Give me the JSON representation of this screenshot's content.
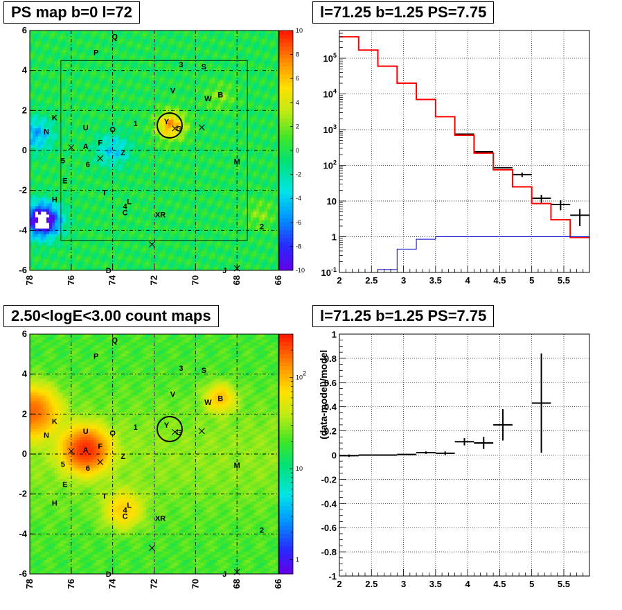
{
  "panels": {
    "ps_map": {
      "title": "PS map b=0 l=72"
    },
    "spectrum": {
      "title": "l=71.25 b=1.25 PS=7.75"
    },
    "count_map": {
      "title": "2.50<logE<3.00 count maps"
    },
    "residual": {
      "title": "l=71.25 b=1.25 PS=7.75"
    }
  },
  "colors": {
    "data": "#000000",
    "model": "#ff0000",
    "background_model": "#0000cc"
  },
  "chart_data": [
    {
      "id": "ps_map",
      "type": "heatmap",
      "title": "PS map b=0 l=72",
      "xlim": [
        78,
        66
      ],
      "ylim": [
        -6,
        6
      ],
      "x_ticks": [
        "78",
        "76",
        "74",
        "72",
        "70",
        "68",
        "66"
      ],
      "y_ticks": [
        "6",
        "4",
        "2",
        "0",
        "-2",
        "-4",
        "-6"
      ],
      "colorbar": {
        "range": [
          -10,
          10
        ],
        "ticks": [
          "10",
          "8",
          "6",
          "4",
          "2",
          "0",
          "-2",
          "-4",
          "-6",
          "-8",
          "-10"
        ]
      },
      "features": [
        {
          "l": 71.2,
          "b": 1.25,
          "value": 7,
          "sigma": 0.5
        },
        {
          "l": 77.4,
          "b": -3.5,
          "value": -12,
          "sigma": 0.6
        },
        {
          "l": 77.7,
          "b": 0.8,
          "value": -5,
          "sigma": 0.6
        },
        {
          "l": 74.0,
          "b": 0.0,
          "value": -4,
          "sigma": 0.6
        },
        {
          "l": 68.8,
          "b": 2.7,
          "value": 2,
          "sigma": 0.5
        },
        {
          "l": 66.9,
          "b": -3.2,
          "value": 2,
          "sigma": 0.5
        }
      ],
      "sources": [
        {
          "label": "Q",
          "l": 73.9,
          "b": 5.7
        },
        {
          "label": "P",
          "l": 74.8,
          "b": 4.9
        },
        {
          "label": "3",
          "l": 70.7,
          "b": 4.3
        },
        {
          "label": "S",
          "l": 69.6,
          "b": 4.2
        },
        {
          "label": "V",
          "l": 71.1,
          "b": 3.0
        },
        {
          "label": "W",
          "l": 69.4,
          "b": 2.6
        },
        {
          "label": "B",
          "l": 68.8,
          "b": 2.8
        },
        {
          "label": "Y",
          "l": 71.4,
          "b": 1.45
        },
        {
          "label": "G",
          "l": 70.8,
          "b": 1.1
        },
        {
          "label": "K",
          "l": 76.8,
          "b": 1.65
        },
        {
          "label": "N",
          "l": 77.2,
          "b": 0.95
        },
        {
          "label": "U",
          "l": 75.3,
          "b": 1.15
        },
        {
          "label": "O",
          "l": 74.0,
          "b": 1.05
        },
        {
          "label": "1",
          "l": 72.9,
          "b": 1.35
        },
        {
          "label": "F",
          "l": 74.6,
          "b": 0.4
        },
        {
          "label": "A",
          "l": 75.3,
          "b": 0.2
        },
        {
          "label": "Z",
          "l": 73.5,
          "b": -0.1
        },
        {
          "label": "5",
          "l": 76.4,
          "b": -0.5
        },
        {
          "label": "6",
          "l": 75.2,
          "b": -0.7
        },
        {
          "label": "M",
          "l": 68.0,
          "b": -0.55
        },
        {
          "label": "E",
          "l": 76.3,
          "b": -1.5
        },
        {
          "label": "T",
          "l": 74.4,
          "b": -2.1
        },
        {
          "label": "H",
          "l": 76.8,
          "b": -2.45
        },
        {
          "label": "4",
          "l": 73.4,
          "b": -2.8
        },
        {
          "label": "L",
          "l": 73.2,
          "b": -2.55
        },
        {
          "label": "C",
          "l": 73.4,
          "b": -3.1
        },
        {
          "label": "XR",
          "l": 71.7,
          "b": -3.2
        },
        {
          "label": "2",
          "l": 66.8,
          "b": -3.8
        },
        {
          "label": "D",
          "l": 74.2,
          "b": -6.0
        },
        {
          "label": "J",
          "l": 68.6,
          "b": -6.0
        }
      ],
      "crosses": [
        {
          "l": 76.0,
          "b": 0.15
        },
        {
          "l": 74.6,
          "b": -0.4
        },
        {
          "l": 71.0,
          "b": 1.1
        },
        {
          "l": 69.7,
          "b": 1.15
        },
        {
          "l": 72.1,
          "b": -4.7
        },
        {
          "l": 68.0,
          "b": -5.9
        }
      ],
      "circle": {
        "l": 71.25,
        "b": 1.25,
        "r": 0.6
      },
      "roi": {
        "l_min": 67.5,
        "l_max": 76.5,
        "b_min": -4.5,
        "b_max": 4.5
      }
    },
    {
      "id": "spectrum",
      "type": "line",
      "title": "l=71.25 b=1.25 PS=7.75",
      "xlabel": "",
      "ylabel": "",
      "xlim": [
        2,
        5.9
      ],
      "ylim": [
        0.1,
        600000
      ],
      "y_log": true,
      "x_ticks": [
        "2",
        "2.5",
        "3",
        "3.5",
        "4",
        "4.5",
        "5",
        "5.5"
      ],
      "y_ticks": [
        "10^5",
        "10^4",
        "10^3",
        "10^2",
        "10",
        "1",
        "10^-1"
      ],
      "bin_edges": [
        2.0,
        2.3,
        2.6,
        2.9,
        3.2,
        3.5,
        3.8,
        4.1,
        4.4,
        4.7,
        5.0,
        5.3,
        5.6,
        5.9
      ],
      "series": [
        {
          "style": "data",
          "values": [
            null,
            null,
            null,
            null,
            null,
            null,
            750,
            240,
            85,
            55,
            12,
            8,
            4
          ],
          "errors": [
            0,
            0,
            0,
            0,
            0,
            0,
            0,
            0,
            0,
            8,
            3,
            2.5,
            2
          ]
        },
        {
          "style": "model",
          "values": [
            400000,
            170000,
            60000,
            20000,
            7000,
            2300,
            700,
            220,
            75,
            25,
            8.5,
            3,
            0.95
          ]
        },
        {
          "style": "background_model",
          "values": [
            0.1,
            0.1,
            0.12,
            0.45,
            0.85,
            1.0,
            1.0,
            1.0,
            1.0,
            1.0,
            1.0,
            1.0,
            1.0
          ]
        }
      ],
      "grid": true
    },
    {
      "id": "count_map",
      "type": "heatmap",
      "title": "2.50<logE<3.00 count maps",
      "xlim": [
        78,
        66
      ],
      "ylim": [
        -6,
        6
      ],
      "x_ticks": [
        "78",
        "76",
        "74",
        "72",
        "70",
        "68",
        "66"
      ],
      "y_ticks": [
        "6",
        "4",
        "2",
        "0",
        "-2",
        "-4",
        "-6"
      ],
      "colorbar": {
        "log": true,
        "range": [
          0.7,
          300
        ],
        "ticks": [
          "10^2",
          "10",
          "1"
        ]
      },
      "features": [
        {
          "l": 75.3,
          "b": 0.2,
          "value": 230,
          "sigma": 0.65
        },
        {
          "l": 77.9,
          "b": 2.1,
          "value": 150,
          "sigma": 0.75
        },
        {
          "l": 68.8,
          "b": 2.8,
          "value": 70,
          "sigma": 0.45
        },
        {
          "l": 73.5,
          "b": -2.8,
          "value": 60,
          "sigma": 0.6
        }
      ],
      "sources": [
        {
          "label": "Q",
          "l": 73.9,
          "b": 5.7
        },
        {
          "label": "P",
          "l": 74.8,
          "b": 4.9
        },
        {
          "label": "3",
          "l": 70.7,
          "b": 4.3
        },
        {
          "label": "S",
          "l": 69.6,
          "b": 4.2
        },
        {
          "label": "V",
          "l": 71.1,
          "b": 3.0
        },
        {
          "label": "W",
          "l": 69.4,
          "b": 2.6
        },
        {
          "label": "B",
          "l": 68.8,
          "b": 2.8
        },
        {
          "label": "Y",
          "l": 71.4,
          "b": 1.45
        },
        {
          "label": "G",
          "l": 70.8,
          "b": 1.1
        },
        {
          "label": "K",
          "l": 76.8,
          "b": 1.65
        },
        {
          "label": "N",
          "l": 77.2,
          "b": 0.95
        },
        {
          "label": "U",
          "l": 75.3,
          "b": 1.15
        },
        {
          "label": "O",
          "l": 74.0,
          "b": 1.05
        },
        {
          "label": "1",
          "l": 72.9,
          "b": 1.35
        },
        {
          "label": "F",
          "l": 74.6,
          "b": 0.4
        },
        {
          "label": "A",
          "l": 75.3,
          "b": 0.2
        },
        {
          "label": "Z",
          "l": 73.5,
          "b": -0.1
        },
        {
          "label": "5",
          "l": 76.4,
          "b": -0.5
        },
        {
          "label": "6",
          "l": 75.2,
          "b": -0.7
        },
        {
          "label": "M",
          "l": 68.0,
          "b": -0.55
        },
        {
          "label": "E",
          "l": 76.3,
          "b": -1.5
        },
        {
          "label": "T",
          "l": 74.4,
          "b": -2.1
        },
        {
          "label": "H",
          "l": 76.8,
          "b": -2.45
        },
        {
          "label": "4",
          "l": 73.4,
          "b": -2.8
        },
        {
          "label": "L",
          "l": 73.2,
          "b": -2.55
        },
        {
          "label": "C",
          "l": 73.4,
          "b": -3.1
        },
        {
          "label": "XR",
          "l": 71.7,
          "b": -3.2
        },
        {
          "label": "2",
          "l": 66.8,
          "b": -3.8
        },
        {
          "label": "D",
          "l": 74.2,
          "b": -6.0
        },
        {
          "label": "J",
          "l": 68.6,
          "b": -6.0
        }
      ],
      "crosses": [
        {
          "l": 76.0,
          "b": 0.15
        },
        {
          "l": 74.6,
          "b": -0.4
        },
        {
          "l": 71.0,
          "b": 1.1
        },
        {
          "l": 69.7,
          "b": 1.15
        },
        {
          "l": 72.1,
          "b": -4.7
        },
        {
          "l": 68.0,
          "b": -5.9
        }
      ],
      "circle": {
        "l": 71.25,
        "b": 1.25,
        "r": 0.6
      }
    },
    {
      "id": "residual",
      "type": "scatter",
      "title": "l=71.25 b=1.25 PS=7.75",
      "xlabel": "",
      "ylabel": "(data-model)/model",
      "xlim": [
        2,
        5.9
      ],
      "ylim": [
        -1,
        1
      ],
      "x_ticks": [
        "2",
        "2.5",
        "3",
        "3.5",
        "4",
        "4.5",
        "5",
        "5.5"
      ],
      "y_ticks": [
        "1",
        "0.8",
        "0.6",
        "0.4",
        "0.2",
        "0",
        "-0.2",
        "-0.4",
        "-0.6",
        "-0.8",
        "-1"
      ],
      "points": [
        {
          "x": 2.15,
          "y": -0.005,
          "xerr": 0.15,
          "yerr": 0.01
        },
        {
          "x": 2.45,
          "y": 0.0,
          "xerr": 0.15,
          "yerr": 0.005
        },
        {
          "x": 2.75,
          "y": 0.0,
          "xerr": 0.15,
          "yerr": 0.005
        },
        {
          "x": 3.05,
          "y": 0.005,
          "xerr": 0.15,
          "yerr": 0.005
        },
        {
          "x": 3.35,
          "y": 0.02,
          "xerr": 0.15,
          "yerr": 0.01
        },
        {
          "x": 3.65,
          "y": 0.015,
          "xerr": 0.15,
          "yerr": 0.015
        },
        {
          "x": 3.95,
          "y": 0.11,
          "xerr": 0.15,
          "yerr": 0.03
        },
        {
          "x": 4.25,
          "y": 0.1,
          "xerr": 0.15,
          "yerr": 0.05
        },
        {
          "x": 4.55,
          "y": 0.25,
          "xerr": 0.15,
          "yerr": 0.13
        },
        {
          "x": 5.15,
          "y": 0.43,
          "xerr": 0.15,
          "yerr": 0.41
        }
      ],
      "grid": true
    }
  ]
}
